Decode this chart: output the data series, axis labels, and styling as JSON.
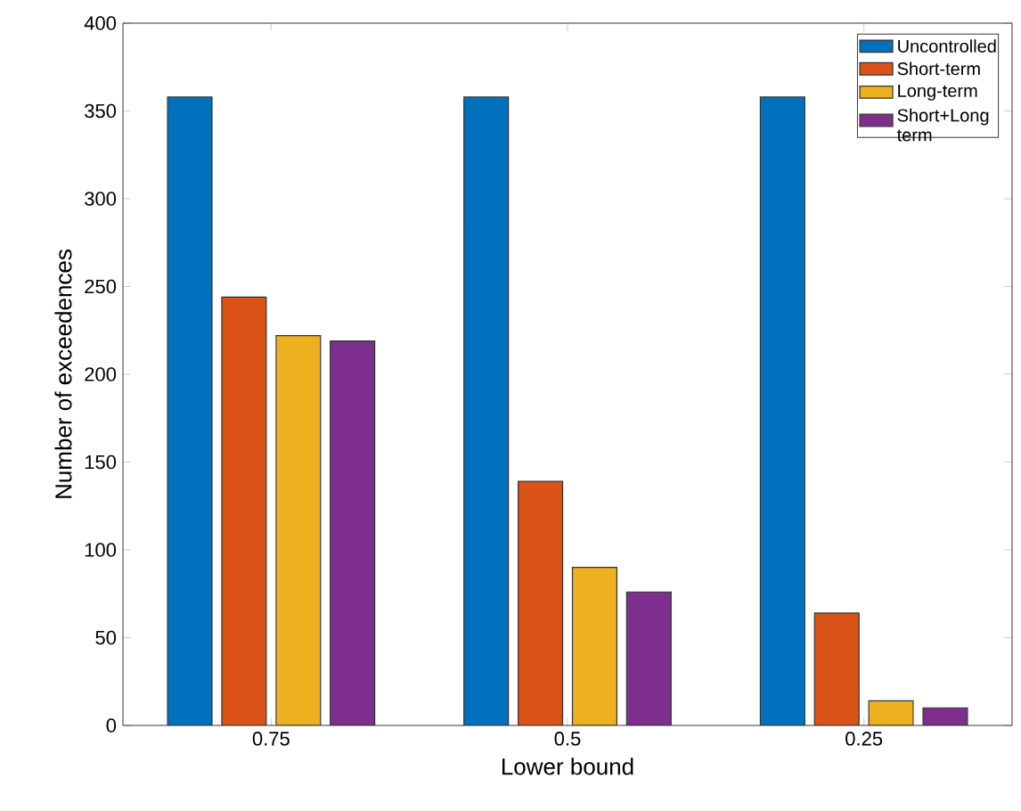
{
  "chart_data": {
    "type": "bar",
    "categories": [
      "0.75",
      "0.5",
      "0.25"
    ],
    "xlabel": "Lower bound",
    "ylabel": "Number of exceedences",
    "series": [
      {
        "name": "Uncontrolled",
        "color": "#0072bd",
        "values": [
          358,
          358,
          358
        ]
      },
      {
        "name": "Short-term",
        "color": "#d95319",
        "values": [
          244,
          139,
          64
        ]
      },
      {
        "name": "Long-term",
        "color": "#edb120",
        "values": [
          222,
          90,
          14
        ]
      },
      {
        "name": "Short+Long term",
        "color": "#7e2f8e",
        "values": [
          219,
          76,
          10
        ]
      }
    ],
    "ylim": [
      0,
      400
    ],
    "yticks": [
      0,
      50,
      100,
      150,
      200,
      250,
      300,
      350,
      400
    ],
    "legend": "top right"
  }
}
